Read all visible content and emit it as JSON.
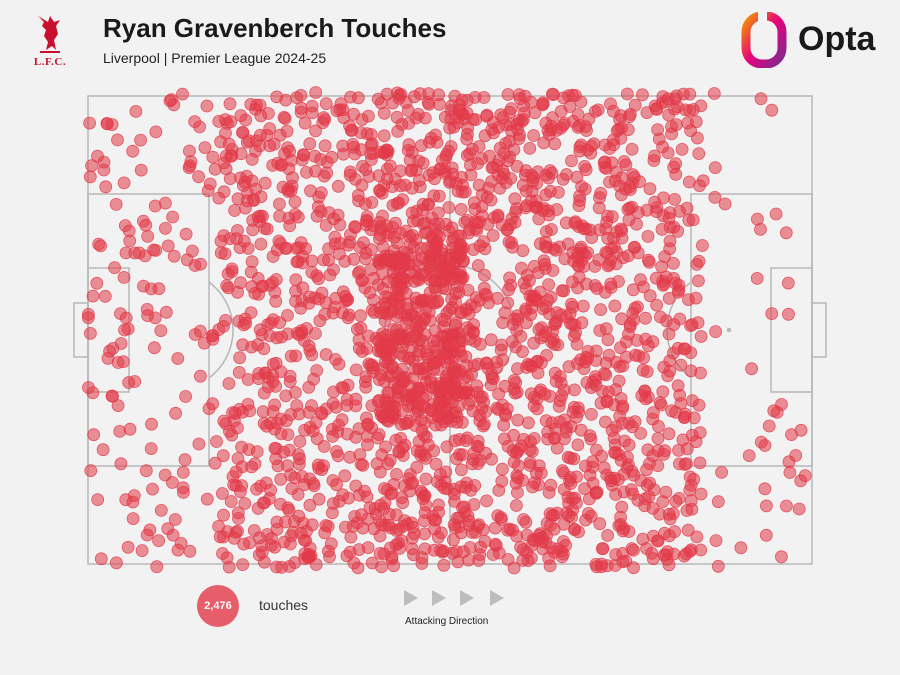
{
  "header": {
    "title": "Ryan Gravenberch Touches",
    "subtitle": "Liverpool | Premier League 2024-25"
  },
  "crest": {
    "text": "L.F.C.",
    "color": "#c8102e",
    "icon": "liverbird-crest-icon"
  },
  "brand": {
    "name": "Opta",
    "icon": "opta-logo-icon"
  },
  "legend": {
    "count": "2,476",
    "label": "touches"
  },
  "direction": {
    "label": "Attacking Direction",
    "arrows": 4,
    "icon": "play-arrow-icon"
  },
  "chart_data": {
    "type": "scatter",
    "title": "Ryan Gravenberch Touches",
    "subtitle": "Liverpool | Premier League 2024-25",
    "total_touches": 2476,
    "dot_color": "#e23a49",
    "xlim": [
      0,
      100
    ],
    "ylim": [
      0,
      100
    ],
    "x_axis": "pitch length (0 = own goal, 100 = opponent goal)",
    "y_axis": "pitch width",
    "density_zones": [
      {
        "x": [
          0,
          18
        ],
        "y": [
          0,
          100
        ],
        "weight": 3
      },
      {
        "x": [
          18,
          40
        ],
        "y": [
          0,
          100
        ],
        "weight": 12
      },
      {
        "x": [
          40,
          52
        ],
        "y": [
          30,
          70
        ],
        "weight": 6
      },
      {
        "x": [
          40,
          52
        ],
        "y": [
          0,
          100
        ],
        "weight": 10
      },
      {
        "x": [
          52,
          75
        ],
        "y": [
          0,
          100
        ],
        "weight": 16
      },
      {
        "x": [
          75,
          85
        ],
        "y": [
          0,
          100
        ],
        "weight": 5
      },
      {
        "x": [
          85,
          100
        ],
        "y": [
          0,
          100
        ],
        "weight": 1
      }
    ]
  }
}
